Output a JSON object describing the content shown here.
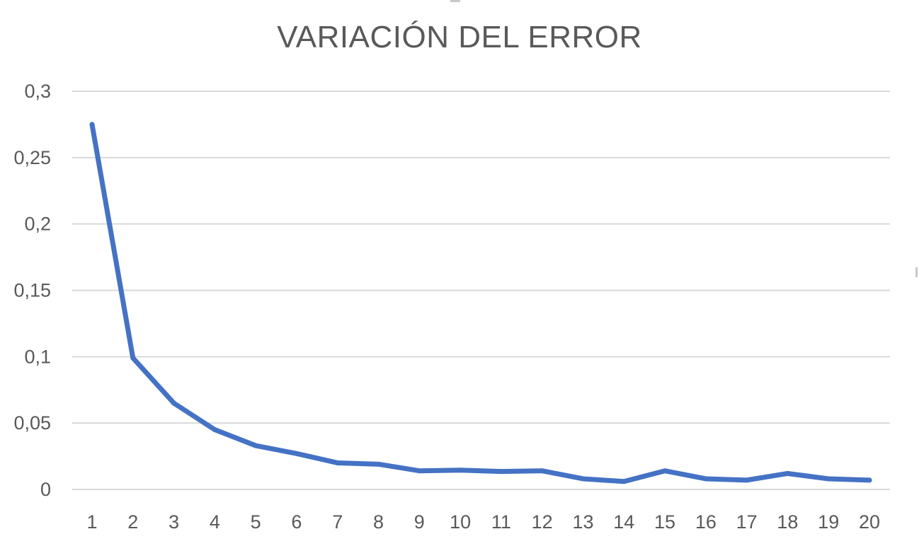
{
  "chart_data": {
    "type": "line",
    "title": "VARIACIÓN DEL ERROR",
    "xlabel": "",
    "ylabel": "",
    "categories": [
      "1",
      "2",
      "3",
      "4",
      "5",
      "6",
      "7",
      "8",
      "9",
      "10",
      "11",
      "12",
      "13",
      "14",
      "15",
      "16",
      "17",
      "18",
      "19",
      "20"
    ],
    "series": [
      {
        "values": [
          0.275,
          0.099,
          0.065,
          0.045,
          0.033,
          0.027,
          0.02,
          0.019,
          0.014,
          0.0145,
          0.0135,
          0.014,
          0.008,
          0.006,
          0.014,
          0.008,
          0.007,
          0.012,
          0.008,
          0.007
        ],
        "color": "#4472c4"
      }
    ],
    "ylim": [
      0,
      0.3
    ],
    "yticks": [
      {
        "value": 0,
        "label": "0"
      },
      {
        "value": 0.05,
        "label": "0,05"
      },
      {
        "value": 0.1,
        "label": "0,1"
      },
      {
        "value": 0.15,
        "label": "0,15"
      },
      {
        "value": 0.2,
        "label": "0,2"
      },
      {
        "value": 0.25,
        "label": "0,25"
      },
      {
        "value": 0.3,
        "label": "0,3"
      }
    ],
    "grid": true,
    "legend": "none",
    "colors": {
      "line": "#4472c4",
      "grid": "#d9d9d9",
      "text": "#595959"
    }
  }
}
